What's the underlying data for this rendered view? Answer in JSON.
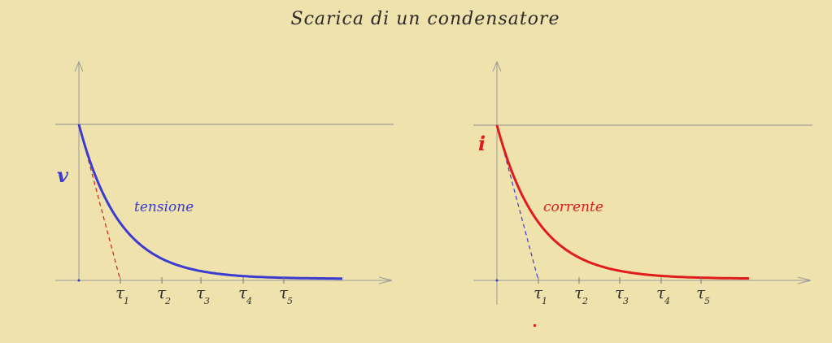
{
  "title": "Scarica di un  condensatore",
  "colors": {
    "background": "#f0e2ad",
    "voltage": "#3b3bd1",
    "current": "#e01b1b",
    "axis": "#9a9a9a"
  },
  "graphs": [
    {
      "variable": "v",
      "curve_label": "tensione",
      "curve_color": "#3b3bd1",
      "tangent_color": "#d21d1d",
      "tau_labels": [
        {
          "sym": "τ",
          "sub": "1"
        },
        {
          "sym": "τ",
          "sub": "2"
        },
        {
          "sym": "τ",
          "sub": "3"
        },
        {
          "sym": "τ",
          "sub": "4"
        },
        {
          "sym": "τ",
          "sub": "5"
        }
      ]
    },
    {
      "variable": "i",
      "curve_label": "corrente",
      "curve_color": "#e01b1b",
      "tangent_color": "#3b3bd1",
      "tau_labels": [
        {
          "sym": "τ",
          "sub": "1"
        },
        {
          "sym": "τ",
          "sub": "2"
        },
        {
          "sym": "τ",
          "sub": "3"
        },
        {
          "sym": "τ",
          "sub": "4"
        },
        {
          "sym": "τ",
          "sub": "5"
        }
      ]
    }
  ]
}
